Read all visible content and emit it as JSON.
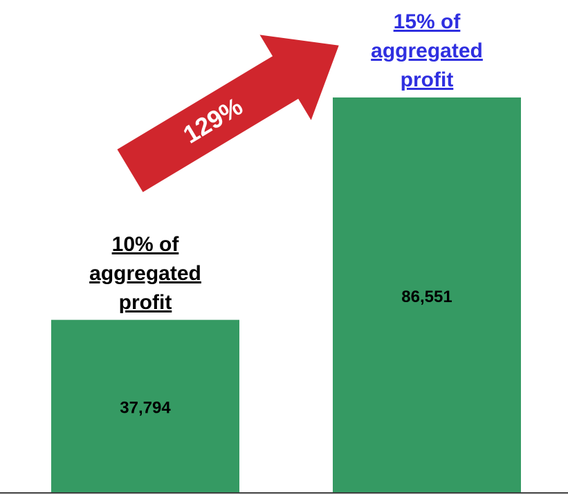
{
  "chart_data": {
    "type": "bar",
    "values": [
      37794,
      86551
    ],
    "value_labels": [
      "37,794",
      "86,551"
    ],
    "color": "#359a63",
    "annotations": [
      {
        "text": "10% of aggregated profit",
        "color": "#000000"
      },
      {
        "text": "15% of aggregated profit",
        "color": "#2f2fe0"
      }
    ],
    "arrow": {
      "text": "129%",
      "color": "#d0262d"
    }
  }
}
